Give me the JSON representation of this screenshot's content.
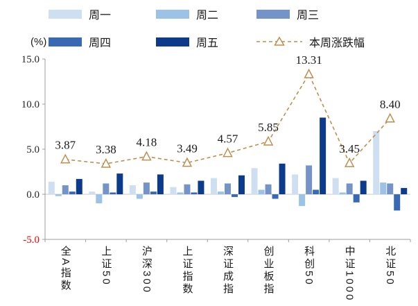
{
  "unit_label": "(%)",
  "chart_data": {
    "type": "bar+line",
    "title": "",
    "categories": [
      "全A指数",
      "上证50",
      "沪深300",
      "上证指数",
      "深证成指",
      "创业板指",
      "科创50",
      "中证1000",
      "北证50"
    ],
    "series": [
      {
        "name": "周一",
        "color": "#cfdff2",
        "values": [
          1.4,
          0.3,
          1.0,
          0.8,
          1.8,
          2.9,
          2.2,
          1.8,
          7.0
        ]
      },
      {
        "name": "周二",
        "color": "#9cc2e5",
        "values": [
          -0.2,
          -1.0,
          -0.5,
          0.2,
          0.3,
          0.5,
          -1.3,
          0.2,
          1.3
        ]
      },
      {
        "name": "周三",
        "color": "#7494c8",
        "values": [
          1.0,
          1.2,
          1.3,
          1.1,
          1.2,
          1.1,
          3.2,
          1.2,
          1.2
        ]
      },
      {
        "name": "周四",
        "color": "#3a69b3",
        "values": [
          0.3,
          0.2,
          0.3,
          0.2,
          -0.3,
          -0.5,
          0.5,
          -0.9,
          -1.8
        ]
      },
      {
        "name": "周五",
        "color": "#0d3b8c",
        "values": [
          1.7,
          2.3,
          2.2,
          1.5,
          2.1,
          3.4,
          8.5,
          1.5,
          0.7
        ]
      }
    ],
    "line_series": {
      "name": "本周涨跌幅",
      "color": "#bf8e4d",
      "values": [
        3.87,
        3.38,
        4.18,
        3.49,
        4.57,
        5.85,
        13.31,
        3.45,
        8.4
      ]
    },
    "ylabel": "(%)",
    "yticks": [
      "15.0",
      "10.0",
      "5.0",
      "0.0",
      "-5.0"
    ],
    "ylim": [
      -5,
      15
    ],
    "grid": false,
    "legend_position": "top",
    "tick_color": "#262626",
    "negative_tick_color": "#ff0000",
    "axis_color": "#9d9d9d",
    "label_color": "#1a1a1a"
  }
}
